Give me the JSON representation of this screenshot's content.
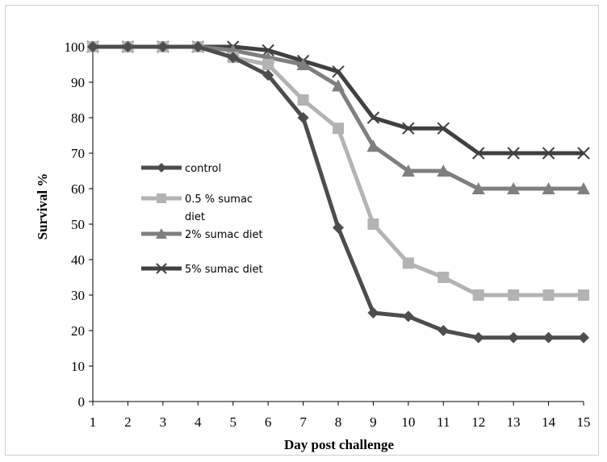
{
  "chart_data": {
    "type": "line",
    "xlabel": "Day post challenge",
    "ylabel": "Survival %",
    "x": [
      1,
      2,
      3,
      4,
      5,
      6,
      7,
      8,
      9,
      10,
      11,
      12,
      13,
      14,
      15
    ],
    "xlim": [
      1,
      15
    ],
    "ylim": [
      0,
      100
    ],
    "yticks": [
      0,
      10,
      20,
      30,
      40,
      50,
      60,
      70,
      80,
      90,
      100
    ],
    "grid": false,
    "legend_position": "left-middle inside plot",
    "series": [
      {
        "name": "control",
        "marker": "diamond",
        "color": "#4d4d4d",
        "values": [
          100,
          100,
          100,
          100,
          97,
          92,
          80,
          49,
          25,
          24,
          20,
          18,
          18,
          18,
          18
        ]
      },
      {
        "name": "0.5 % sumac diet",
        "marker": "square",
        "color": "#b3b3b3",
        "values": [
          100,
          100,
          100,
          100,
          97,
          95,
          85,
          77,
          50,
          39,
          35,
          30,
          30,
          30,
          30
        ]
      },
      {
        "name": "2% sumac diet",
        "marker": "triangle",
        "color": "#7f7f7f",
        "values": [
          100,
          100,
          100,
          100,
          99,
          97,
          95,
          89,
          72,
          65,
          65,
          60,
          60,
          60,
          60
        ]
      },
      {
        "name": "5% sumac diet",
        "marker": "x",
        "color": "#404040",
        "values": [
          100,
          100,
          100,
          100,
          100,
          99,
          96,
          93,
          80,
          77,
          77,
          70,
          70,
          70,
          70
        ]
      }
    ]
  },
  "legend": {
    "label_lines": [
      [
        "control"
      ],
      [
        "0.5 % sumac",
        "diet"
      ],
      [
        "2% sumac diet"
      ],
      [
        "5% sumac diet"
      ]
    ]
  }
}
